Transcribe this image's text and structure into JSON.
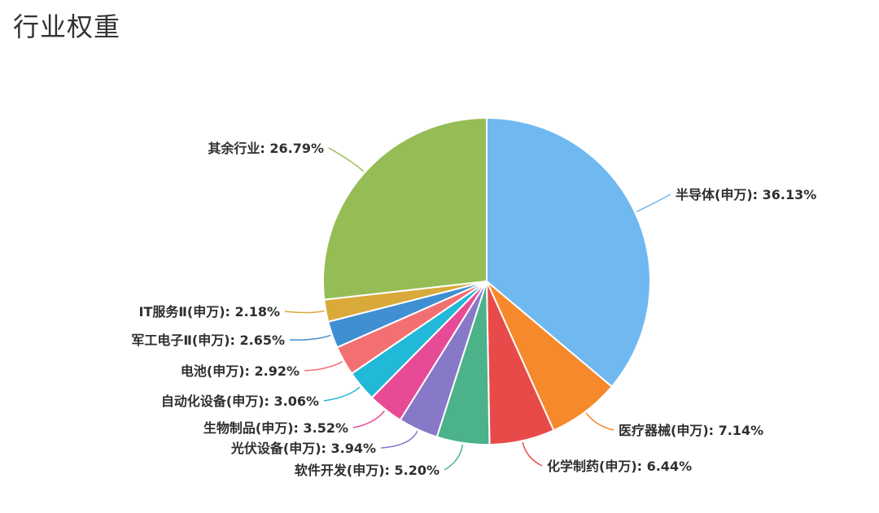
{
  "page": {
    "title": "行业权重"
  },
  "chart_data": {
    "type": "pie",
    "slices": [
      {
        "label": "半导体(申万)",
        "value": 36.13,
        "display": "36.13%",
        "color": "#70b8f0"
      },
      {
        "label": "医疗器械(申万)",
        "value": 7.14,
        "display": "7.14%",
        "color": "#f5892b"
      },
      {
        "label": "化学制药(申万)",
        "value": 6.44,
        "display": "6.44%",
        "color": "#e84a4a"
      },
      {
        "label": "软件开发(申万)",
        "value": 5.2,
        "display": "5.20%",
        "color": "#4bb28a"
      },
      {
        "label": "光伏设备(申万)",
        "value": 3.94,
        "display": "3.94%",
        "color": "#8878c8"
      },
      {
        "label": "生物制品(申万)",
        "value": 3.52,
        "display": "3.52%",
        "color": "#e84b96"
      },
      {
        "label": "自动化设备(申万)",
        "value": 3.06,
        "display": "3.06%",
        "color": "#22b8d8"
      },
      {
        "label": "电池(申万)",
        "value": 2.92,
        "display": "2.92%",
        "color": "#f26f72"
      },
      {
        "label": "军工电子Ⅱ(申万)",
        "value": 2.65,
        "display": "2.65%",
        "color": "#3f8fd2"
      },
      {
        "label": "IT服务Ⅱ(申万)",
        "value": 2.18,
        "display": "2.18%",
        "color": "#d9a93a"
      },
      {
        "label": "其余行业",
        "value": 26.79,
        "display": "26.79%",
        "color": "#96bd55"
      }
    ]
  }
}
